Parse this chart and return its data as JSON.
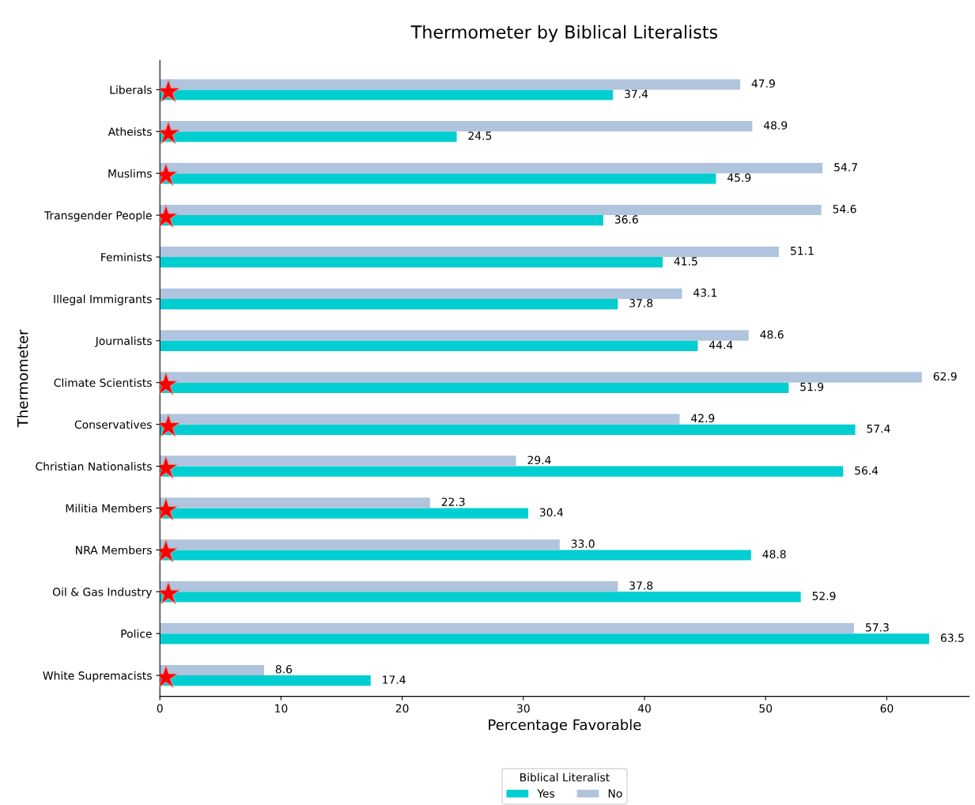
{
  "chart_data": {
    "type": "bar",
    "orientation": "horizontal",
    "title": "Thermometer by Biblical Literalists",
    "xlabel": "Percentage Favorable",
    "ylabel": "Thermometer",
    "legend_title": "Biblical Literalist",
    "legend": "bottom",
    "grid": false,
    "categories": [
      "Liberals",
      "Atheists",
      "Muslims",
      "Transgender People",
      "Feminists",
      "Illegal Immigrants",
      "Journalists",
      "Climate Scientists",
      "Conservatives",
      "Christian Nationalists",
      "Militia Members",
      "NRA Members",
      "Oil & Gas Industry",
      "Police",
      "White Supremacists"
    ],
    "xlim": [
      0,
      66.8
    ],
    "xticks": [
      0,
      10,
      20,
      30,
      40,
      50,
      60
    ],
    "series": [
      {
        "name": "Yes",
        "color": "#00ced1",
        "values": [
          37.4,
          24.5,
          45.9,
          36.6,
          41.5,
          37.8,
          44.4,
          51.9,
          57.4,
          56.4,
          30.4,
          48.8,
          52.9,
          63.5,
          17.4
        ],
        "value_labels": [
          "37.4",
          "24.5",
          "45.9",
          "36.6",
          "41.5",
          "37.8",
          "44.4",
          "51.9",
          "57.4",
          "56.4",
          "30.4",
          "48.8",
          "52.9",
          "63.5",
          "17.4"
        ]
      },
      {
        "name": "No",
        "color": "#b0c4de",
        "values": [
          47.9,
          48.9,
          54.7,
          54.6,
          51.1,
          43.1,
          48.6,
          62.9,
          42.9,
          29.4,
          22.3,
          33.0,
          37.8,
          57.3,
          8.6
        ],
        "value_labels": [
          "47.9",
          "48.9",
          "54.7",
          "54.6",
          "51.1",
          "43.1",
          "48.6",
          "62.9",
          "42.9",
          "29.4",
          "22.3",
          "33.0",
          "37.8",
          "57.3",
          "8.6"
        ]
      },
      {
        "type": "scatter",
        "marker": "star",
        "color": "#ff0000",
        "values": [
          0.7,
          0.7,
          0.5,
          0.5,
          null,
          null,
          null,
          0.5,
          0.7,
          0.5,
          0.5,
          0.5,
          0.7,
          null,
          0.5
        ]
      }
    ]
  }
}
